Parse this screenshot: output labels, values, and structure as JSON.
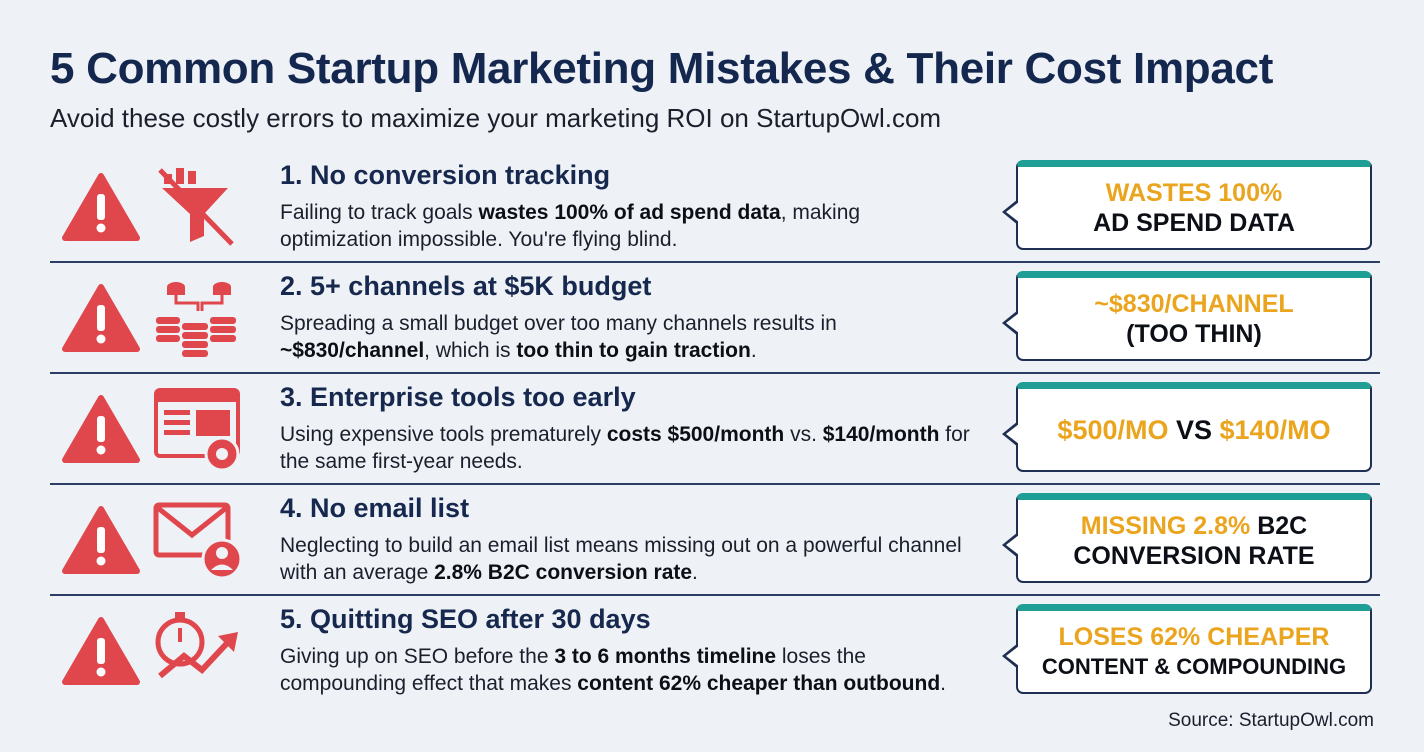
{
  "title": "5 Common Startup Marketing Mistakes & Their Cost Impact",
  "subtitle": "Avoid these costly errors to maximize your marketing ROI on StartupOwl.com",
  "colors": {
    "warning_red": "#e0474c",
    "teal": "#1e9e94",
    "gold": "#eaa41d",
    "navy": "#14274e"
  },
  "mistakes": [
    {
      "title": "1. No conversion tracking",
      "icon": "crossed-out-funnel-icon",
      "desc_parts": [
        {
          "t": "Failing to track goals "
        },
        {
          "t": "wastes 100% of ad spend data",
          "b": true
        },
        {
          "t": ", making optimization impossible. You're flying blind."
        }
      ],
      "callout": {
        "line1": [
          {
            "t": "WASTES 100%",
            "c": "gold"
          }
        ],
        "line2": [
          {
            "t": "AD SPEND DATA",
            "c": "dark"
          }
        ]
      }
    },
    {
      "title": "2. 5+ channels at $5K budget",
      "icon": "coin-stacks-network-icon",
      "desc_parts": [
        {
          "t": "Spreading a small budget over too many channels results in "
        },
        {
          "t": "~$830/channel",
          "b": true
        },
        {
          "t": ", which is "
        },
        {
          "t": "too thin to gain traction",
          "b": true
        },
        {
          "t": "."
        }
      ],
      "callout": {
        "line1": [
          {
            "t": "~$830/CHANNEL",
            "c": "gold"
          }
        ],
        "line2": [
          {
            "t": "(TOO THIN)",
            "c": "dark"
          }
        ]
      }
    },
    {
      "title": "3. Enterprise tools too early",
      "icon": "browser-window-gear-icon",
      "desc_parts": [
        {
          "t": "Using expensive tools prematurely "
        },
        {
          "t": "costs $500/month",
          "b": true
        },
        {
          "t": " vs. "
        },
        {
          "t": "$140/month",
          "b": true
        },
        {
          "t": " for the same first-year needs."
        }
      ],
      "callout": {
        "line1": [
          {
            "t": "$500/MO",
            "c": "gold"
          },
          {
            "t": " VS ",
            "c": "dark"
          },
          {
            "t": "$140/MO",
            "c": "gold"
          }
        ],
        "line2": []
      }
    },
    {
      "title": "4. No email list",
      "icon": "envelope-user-icon",
      "desc_parts": [
        {
          "t": "Neglecting to build an email list means missing out on a powerful channel with an average "
        },
        {
          "t": "2.8% B2C conversion rate",
          "b": true
        },
        {
          "t": "."
        }
      ],
      "callout": {
        "line1": [
          {
            "t": "MISSING 2.8%",
            "c": "gold"
          },
          {
            "t": " B2C",
            "c": "dark"
          }
        ],
        "line2": [
          {
            "t": "CONVERSION RATE",
            "c": "dark"
          }
        ]
      }
    },
    {
      "title": "5. Quitting SEO after 30 days",
      "icon": "stopwatch-trend-arrow-icon",
      "desc_parts": [
        {
          "t": "Giving up on SEO before the "
        },
        {
          "t": "3 to 6 months timeline",
          "b": true
        },
        {
          "t": " loses the compounding effect that makes "
        },
        {
          "t": "content 62% cheaper than outbound",
          "b": true
        },
        {
          "t": "."
        }
      ],
      "callout": {
        "line1": [
          {
            "t": "LOSES 62% CHEAPER",
            "c": "gold"
          }
        ],
        "line2": [
          {
            "t": "CONTENT & COMPOUNDING",
            "c": "dark"
          }
        ]
      }
    }
  ],
  "source": "Source: StartupOwl.com"
}
